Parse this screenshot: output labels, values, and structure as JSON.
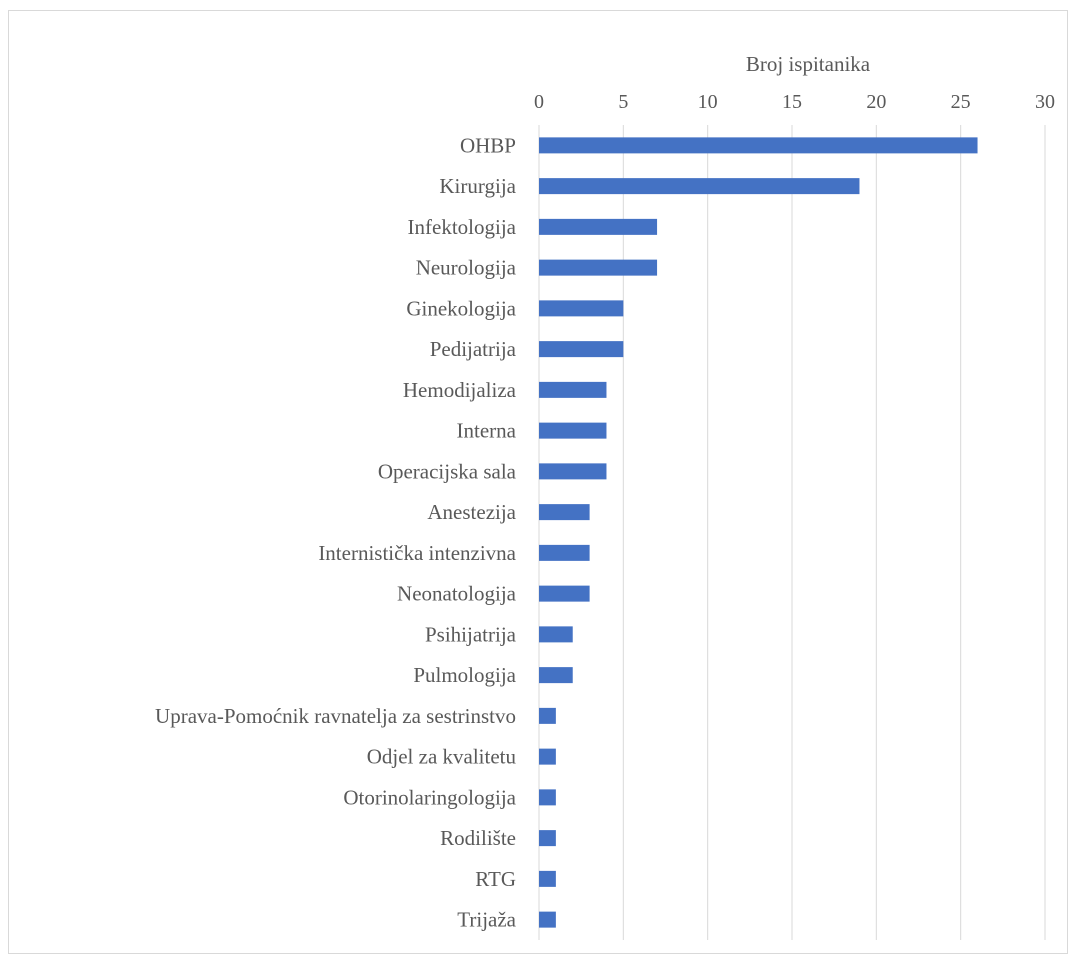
{
  "chart_data": {
    "type": "bar",
    "orientation": "horizontal",
    "xlabel": "Broj ispitanika",
    "ylabel": "",
    "title": "",
    "xlim": [
      0,
      30
    ],
    "xticks": [
      "0",
      "5",
      "10",
      "15",
      "20",
      "25",
      "30"
    ],
    "grid": true,
    "legend": "none",
    "bar_color": "#4472C4",
    "categories": [
      "OHBP",
      "Kirurgija",
      "Infektologija",
      "Neurologija",
      "Ginekologija",
      "Pedijatrija",
      "Hemodijaliza",
      "Interna",
      "Operacijska sala",
      "Anestezija",
      "Internistička intenzivna",
      "Neonatologija",
      "Psihijatrija",
      "Pulmologija",
      "Uprava-Pomoćnik ravnatelja za sestrinstvo",
      "Odjel za kvalitetu",
      "Otorinolaringologija",
      "Rodilište",
      "RTG",
      "Trijaža"
    ],
    "values": [
      26,
      19,
      7,
      7,
      5,
      5,
      4,
      4,
      4,
      3,
      3,
      3,
      2,
      2,
      1,
      1,
      1,
      1,
      1,
      1
    ]
  }
}
